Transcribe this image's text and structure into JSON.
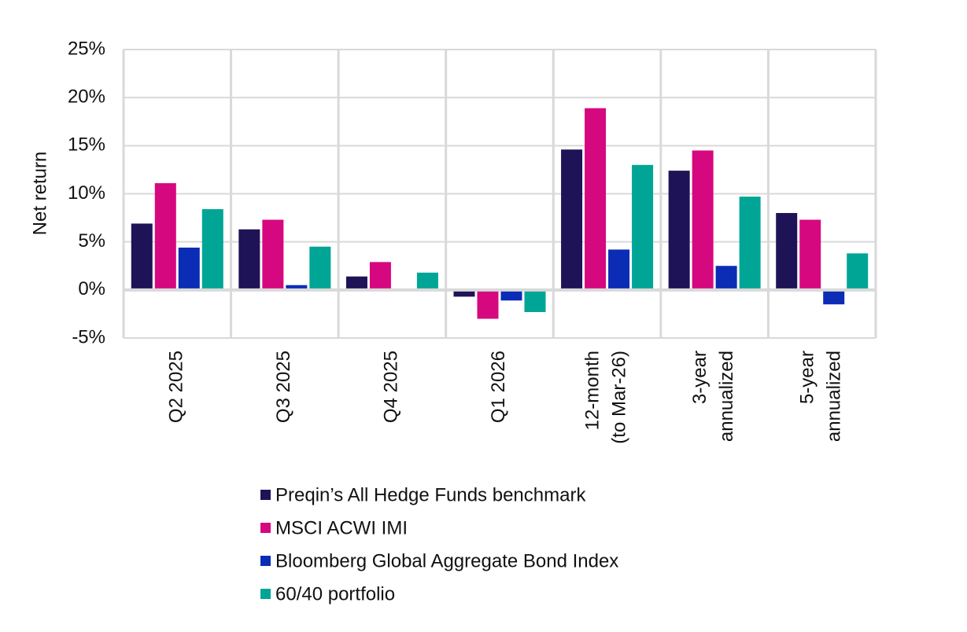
{
  "chart_data": {
    "type": "bar",
    "y_label": "Net return",
    "categories": [
      "Q2 2025",
      "Q3 2025",
      "Q4 2025",
      "Q1 2026",
      "12-month\n(to Mar-26)",
      "3-year\nannualized",
      "5-year\nannualized"
    ],
    "series": [
      {
        "name": "Preqin’s All Hedge Funds benchmark",
        "color": "#1f1357",
        "values": [
          6.9,
          6.3,
          1.4,
          -0.7,
          14.6,
          12.4,
          8.0
        ]
      },
      {
        "name": "MSCI ACWI IMI",
        "color": "#d6087f",
        "values": [
          11.1,
          7.3,
          2.9,
          -3.0,
          18.9,
          14.5,
          7.3
        ]
      },
      {
        "name": "Bloomberg Global Aggregate Bond Index",
        "color": "#0b2cb5",
        "values": [
          4.4,
          0.5,
          0,
          -1.1,
          4.2,
          2.5,
          -1.5
        ]
      },
      {
        "name": "60/40 portfolio",
        "color": "#00a596",
        "values": [
          8.4,
          4.5,
          1.8,
          -2.3,
          13.0,
          9.7,
          3.8
        ]
      }
    ],
    "ylim": [
      -5,
      25
    ],
    "yticks": [
      {
        "value": -5,
        "label": "-5%"
      },
      {
        "value": 0,
        "label": "0%"
      },
      {
        "value": 5,
        "label": "5%"
      },
      {
        "value": 10,
        "label": "10%"
      },
      {
        "value": 15,
        "label": "15%"
      },
      {
        "value": 20,
        "label": "20%"
      },
      {
        "value": 25,
        "label": "25%"
      }
    ],
    "grid": true
  }
}
